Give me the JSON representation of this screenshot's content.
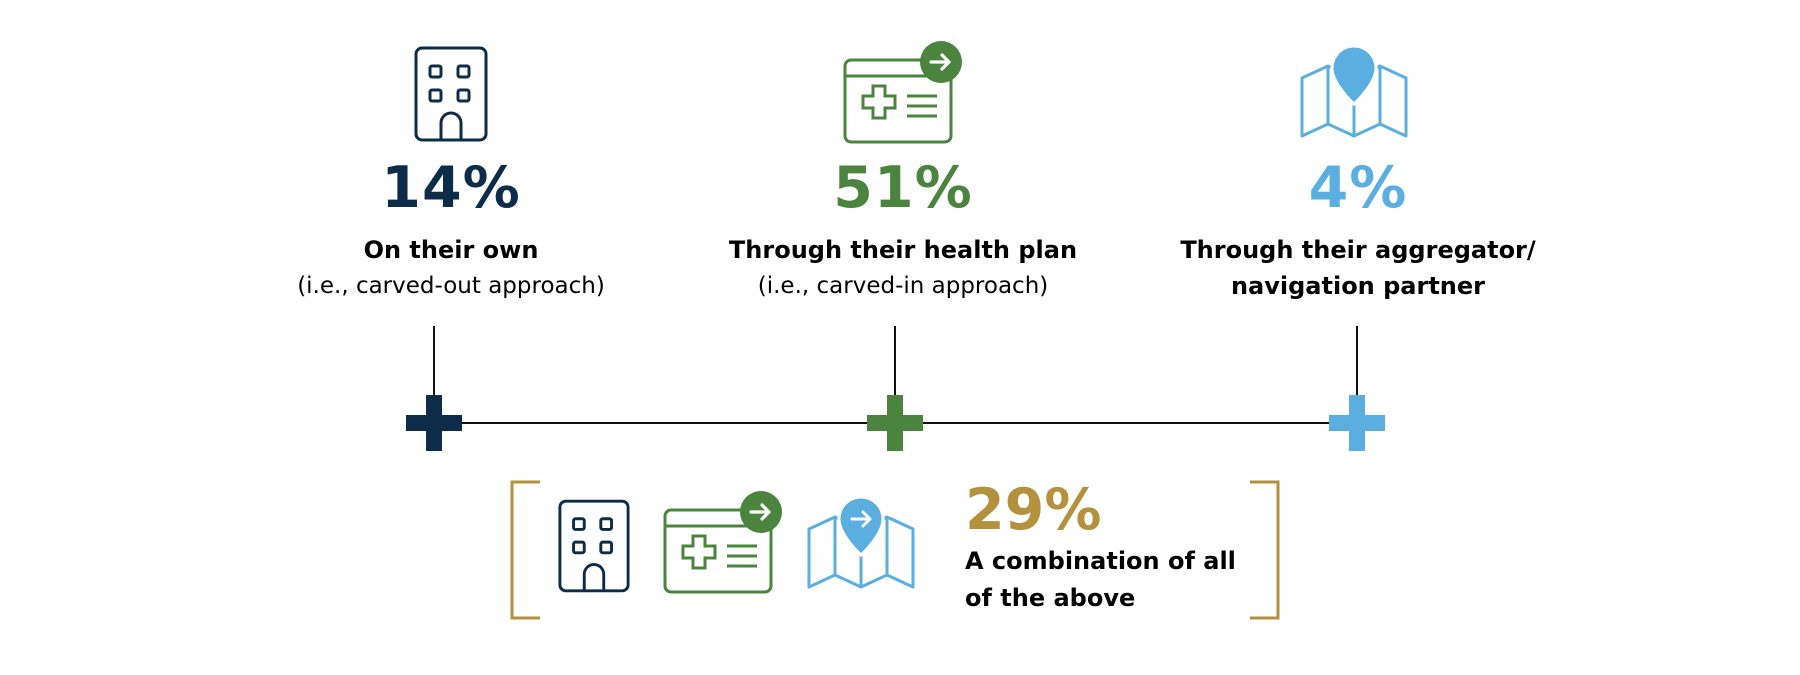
{
  "colors": {
    "navy": "#0d2c4a",
    "green": "#4b843e",
    "blue": "#5aafe0",
    "gold": "#b4913d"
  },
  "options": [
    {
      "icon": "hospital-building-icon",
      "percent": "14%",
      "label": "On their own",
      "sublabel": "(i.e., carved-out approach)"
    },
    {
      "icon": "health-plan-card-icon",
      "percent": "51%",
      "label": "Through their health plan",
      "sublabel": "(i.e., carved-in approach)"
    },
    {
      "icon": "map-pin-icon",
      "percent": "4%",
      "label_line1": "Through their aggregator/",
      "label_line2": "navigation partner"
    }
  ],
  "combination": {
    "percent": "29%",
    "label_line1": "A combination of all",
    "label_line2": "of the above",
    "icons": [
      "hospital-building-icon",
      "health-plan-card-icon",
      "map-pin-arrow-icon"
    ]
  }
}
